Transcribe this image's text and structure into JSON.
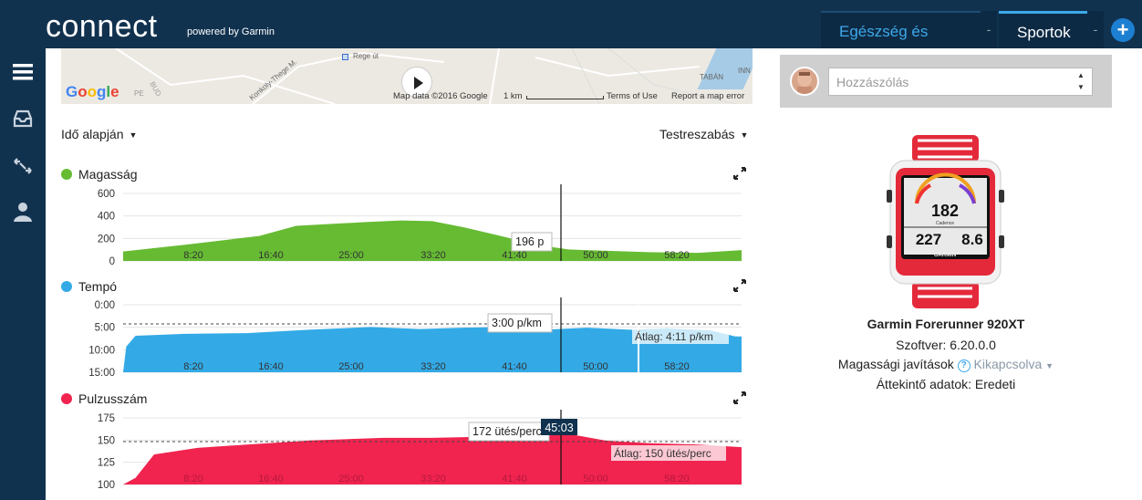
{
  "header": {
    "logo": "connect",
    "logo_sub": "powered by Garmin",
    "tabs": [
      {
        "label": "Egészség és fitnesz"
      },
      {
        "label": "Sportok"
      }
    ],
    "tab_dropdown": "-",
    "add_label": "+"
  },
  "sidebar": {
    "items": [
      {
        "icon": "menu-icon"
      },
      {
        "icon": "inbox-icon"
      },
      {
        "icon": "arrows-icon"
      },
      {
        "icon": "user-icon"
      }
    ]
  },
  "map": {
    "google": "Google",
    "attribution": "Map data ©2016 Google",
    "scale": "1 km",
    "terms": "Terms of Use",
    "report": "Report a map error",
    "place_labels": [
      "Konkoly-Thege M.",
      "Rege út",
      "BUD",
      "PE",
      "TABÁN",
      "INN"
    ]
  },
  "controls": {
    "left": "Idő alapján",
    "right": "Testreszabás"
  },
  "x_ticks": [
    "8:20",
    "16:40",
    "25:00",
    "33:20",
    "41:40",
    "50:00",
    "58:20"
  ],
  "charts": [
    {
      "title": "Magasság",
      "color": "#66bb33",
      "y_ticks": [
        "600",
        "400",
        "200",
        "0"
      ],
      "tooltip": "196 p"
    },
    {
      "title": "Tempó",
      "color": "#33aae6",
      "y_ticks": [
        "0:00",
        "5:00",
        "10:00",
        "15:00"
      ],
      "tooltip": "3:00 p/km",
      "avg": "Átlag: 4:11 p/km"
    },
    {
      "title": "Pulzusszám",
      "color": "#f0244f",
      "y_ticks": [
        "175",
        "150",
        "125",
        "100"
      ],
      "tooltip": "172 ütés/perc",
      "avg": "Átlag: 150 ütés/perc",
      "cursor_time": "45:03"
    }
  ],
  "comment": {
    "placeholder": "Hozzászólás"
  },
  "device": {
    "name": "Garmin Forerunner 920XT",
    "software_label": "Szoftver: 6.20.0.0",
    "elev_label": "Magassági javítások",
    "elev_value": "Kikapcsolva",
    "summary_label": "Áttekintő adatok: Eredeti",
    "screen": {
      "top": "182",
      "left": "227",
      "right": "8.6",
      "brand": "GARMIN",
      "cadence": "Cadence"
    }
  }
}
